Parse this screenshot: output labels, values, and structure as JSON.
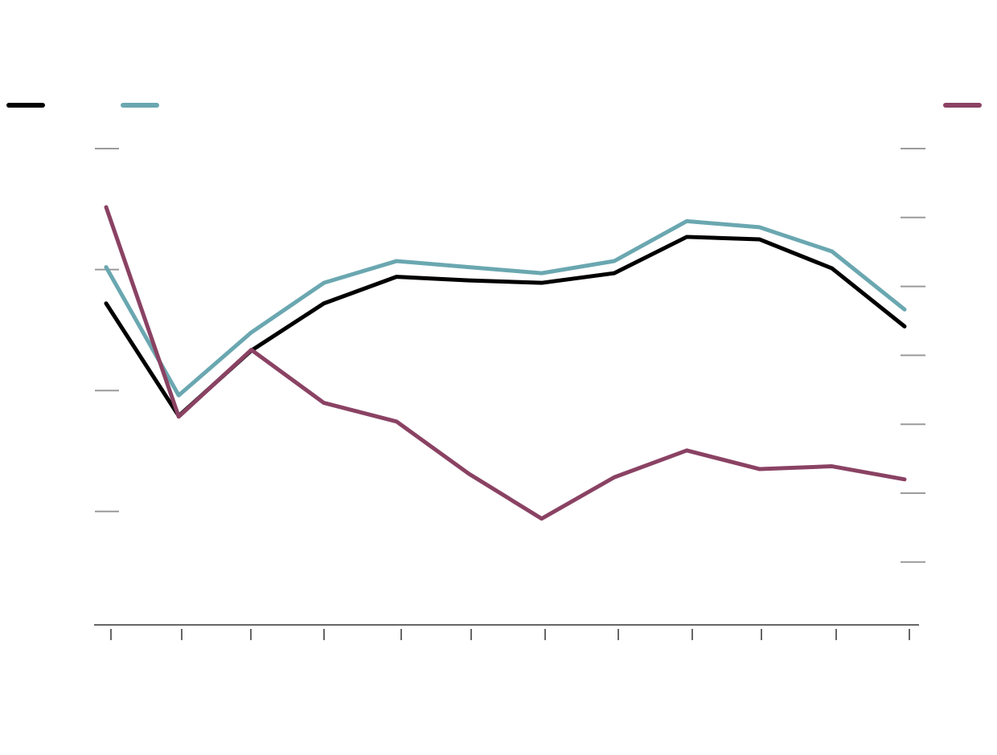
{
  "chart_data": {
    "type": "line",
    "title": "",
    "xlabel": "",
    "ylabel": "",
    "x": [
      0,
      1,
      2,
      3,
      4,
      5,
      6,
      7,
      8,
      9,
      10,
      11
    ],
    "left_axis": {
      "ylim": [
        0,
        4
      ],
      "ticks": [
        1,
        2,
        3,
        4
      ],
      "tick_labels": []
    },
    "right_axis": {
      "ylim": [
        0,
        7
      ],
      "ticks": [
        1,
        2,
        3,
        4,
        5,
        6,
        7
      ],
      "tick_labels": []
    },
    "grid": false,
    "legend": "top",
    "series": [
      {
        "color": "#000000",
        "axis": "left",
        "legend_position": "left",
        "values": [
          2.72,
          1.79,
          2.33,
          2.72,
          2.94,
          2.91,
          2.89,
          2.97,
          3.27,
          3.25,
          3.01,
          2.53
        ]
      },
      {
        "color": "#6aa7b0",
        "axis": "left",
        "legend_position": "center-left",
        "values": [
          3.02,
          1.96,
          2.48,
          2.89,
          3.07,
          3.02,
          2.97,
          3.07,
          3.4,
          3.35,
          3.15,
          2.67
        ]
      },
      {
        "color": "#8a4263",
        "axis": "right",
        "legend_position": "right",
        "values": [
          6.15,
          3.11,
          4.08,
          3.31,
          3.04,
          2.28,
          1.63,
          2.23,
          2.62,
          2.35,
          2.39,
          2.2
        ]
      }
    ]
  }
}
